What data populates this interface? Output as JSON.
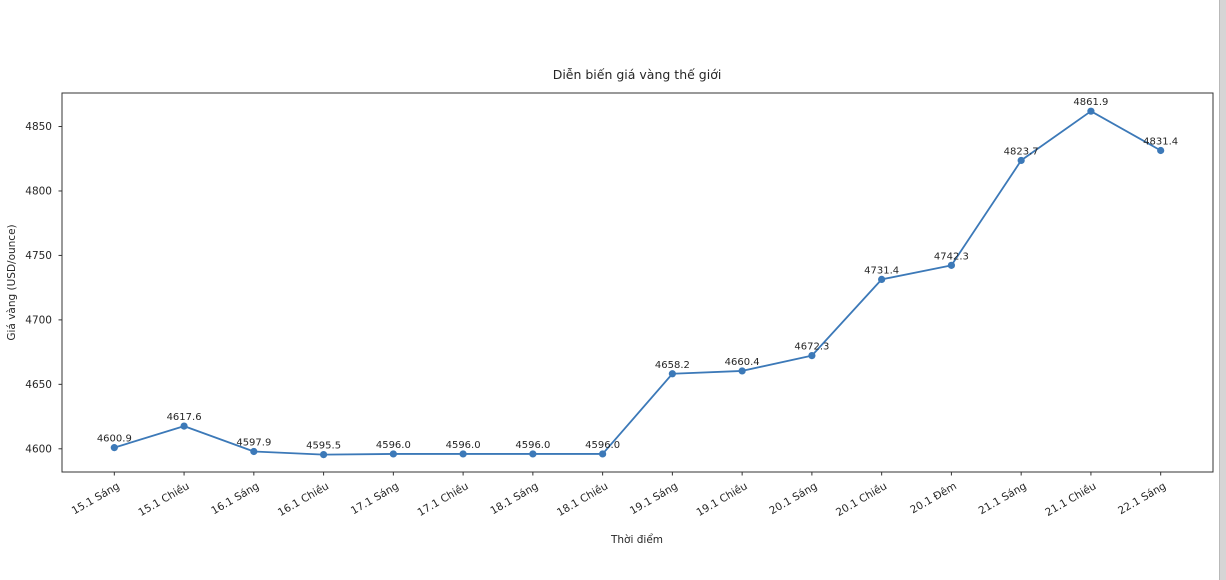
{
  "chart_data": {
    "type": "line",
    "title": "Diễn biến giá vàng thế giới",
    "xlabel": "Thời điểm",
    "ylabel": "Giá vàng (USD/ounce)",
    "categories": [
      "15.1 Sáng",
      "15.1 Chiều",
      "16.1 Sáng",
      "16.1 Chiều",
      "17.1 Sáng",
      "17.1 Chiều",
      "18.1 Sáng",
      "18.1 Chiều",
      "19.1 Sáng",
      "19.1 Chiều",
      "20.1 Sáng",
      "20.1 Chiều",
      "20.1 Đêm",
      "21.1 Sáng",
      "21.1 Chiều",
      "22.1 Sáng"
    ],
    "values": [
      4600.9,
      4617.6,
      4597.9,
      4595.5,
      4596.0,
      4596.0,
      4596.0,
      4596.0,
      4658.2,
      4660.4,
      4672.3,
      4731.4,
      4742.3,
      4823.7,
      4861.9,
      4831.4
    ],
    "point_labels": [
      "4600.9",
      "4617.6",
      "4597.9",
      "4595.5",
      "4596.0",
      "4596.0",
      "4596.0",
      "4596.0",
      "4658.2",
      "4660.4",
      "4672.3",
      "4731.4",
      "4742.3",
      "4823.7",
      "4861.9",
      "4831.4"
    ],
    "yticks": [
      4600,
      4650,
      4700,
      4750,
      4800,
      4850
    ],
    "ylim": [
      4582,
      4876
    ],
    "grid": false,
    "legend": null,
    "xtick_rotation_deg": 30
  },
  "colors": {
    "line": "#3c79b8",
    "marker": "#3c79b8",
    "axis": "#333333",
    "text": "#262626",
    "background": "#ffffff",
    "window_edge": "#d5d5d5"
  }
}
